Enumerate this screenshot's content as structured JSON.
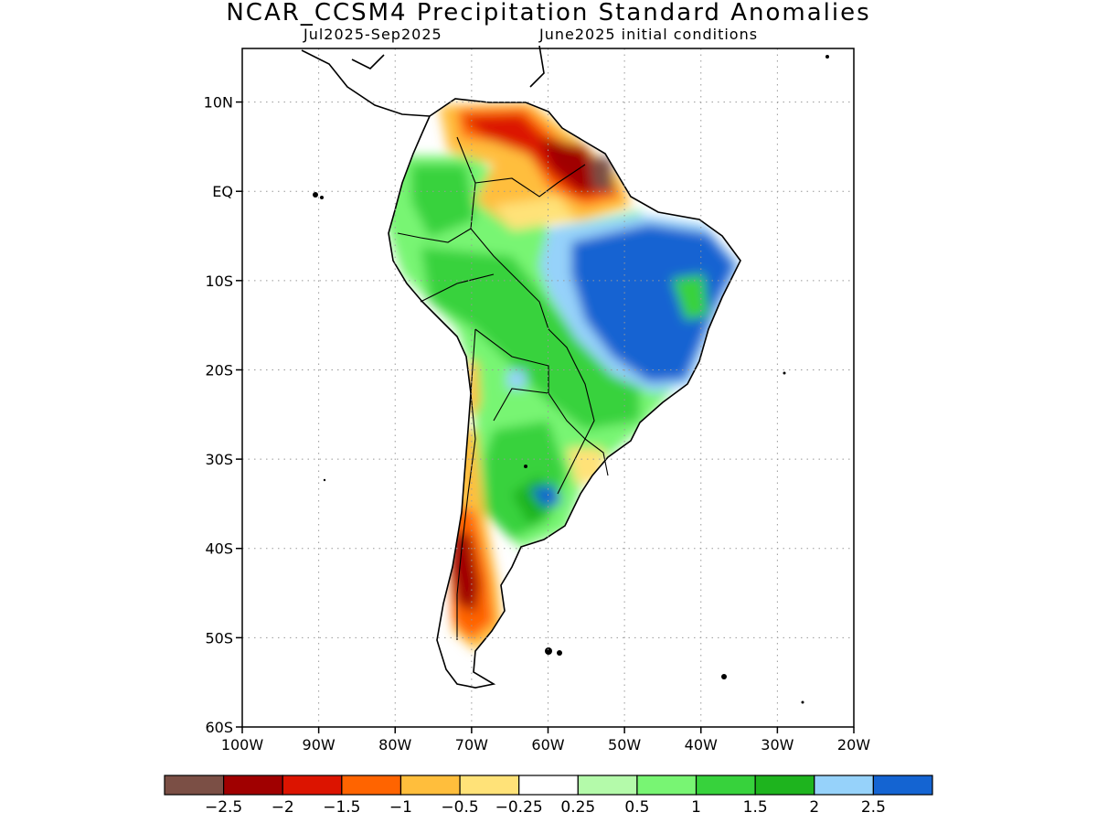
{
  "header": {
    "title": "NCAR_CCSM4 Precipitation Standard Anomalies",
    "period": "Jul2025-Sep2025",
    "init": "June2025 initial conditions"
  },
  "axes": {
    "lat_labels": [
      "10N",
      "EQ",
      "10S",
      "20S",
      "30S",
      "40S",
      "50S",
      "60S"
    ],
    "lon_labels": [
      "100W",
      "90W",
      "80W",
      "70W",
      "60W",
      "50W",
      "40W",
      "30W",
      "20W"
    ],
    "lat_range": [
      -60,
      16
    ],
    "lon_range": [
      -100,
      -20
    ],
    "grid": true
  },
  "legend": {
    "colors": [
      "#7b4f45",
      "#a00000",
      "#dc1400",
      "#ff6400",
      "#ffbe3c",
      "#ffe278",
      "#ffffff",
      "#b4faaa",
      "#78f573",
      "#37d23c",
      "#1eb41e",
      "#96d2fa",
      "#1464d2"
    ],
    "labels": [
      "-2.5",
      "-2",
      "-1.5",
      "-1",
      "-0.5",
      "-0.25",
      "0.25",
      "0.5",
      "1",
      "1.5",
      "2",
      "2.5"
    ]
  }
}
